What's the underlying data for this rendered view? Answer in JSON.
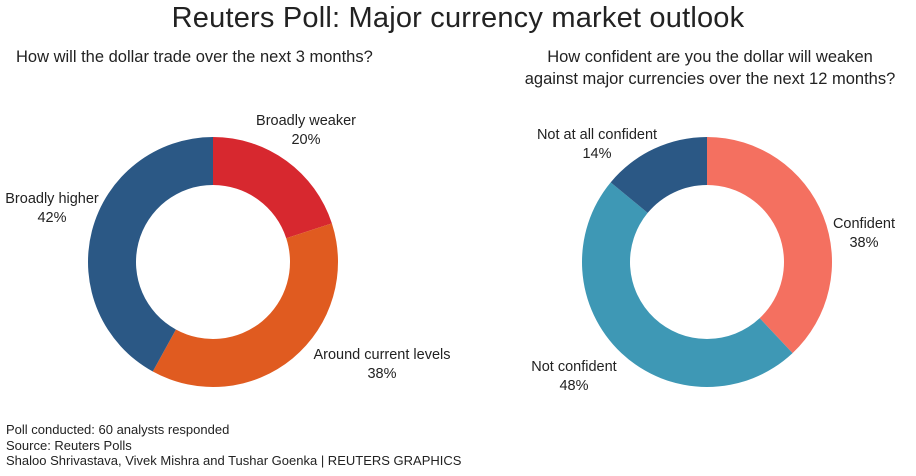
{
  "title": "Reuters Poll: Major currency market outlook",
  "chart_data": [
    {
      "type": "pie",
      "donut": true,
      "title": "How will the dollar trade over the next 3 months?",
      "slices": [
        {
          "label": "Broadly weaker",
          "value_label": "20%",
          "value": 20,
          "color": "#d7282f"
        },
        {
          "label": "Around current levels",
          "value_label": "38%",
          "value": 38,
          "color": "#e05b20"
        },
        {
          "label": "Broadly higher",
          "value_label": "42%",
          "value": 42,
          "color": "#2b5885"
        }
      ]
    },
    {
      "type": "pie",
      "donut": true,
      "title_lines": [
        "How confident are you the dollar will weaken",
        "against major currencies over the next 12 months?"
      ],
      "slices": [
        {
          "label": "Confident",
          "value_label": "38%",
          "value": 38,
          "color": "#f47060"
        },
        {
          "label": "Not confident",
          "value_label": "48%",
          "value": 48,
          "color": "#3e98b5"
        },
        {
          "label": "Not at all confident",
          "value_label": "14%",
          "value": 14,
          "color": "#2b5885"
        }
      ]
    }
  ],
  "footer": {
    "note": "Poll conducted: 60 analysts responded",
    "source": "Source: Reuters Polls",
    "credit": "Shaloo Shrivastava, Vivek Mishra and Tushar Goenka | REUTERS GRAPHICS"
  }
}
